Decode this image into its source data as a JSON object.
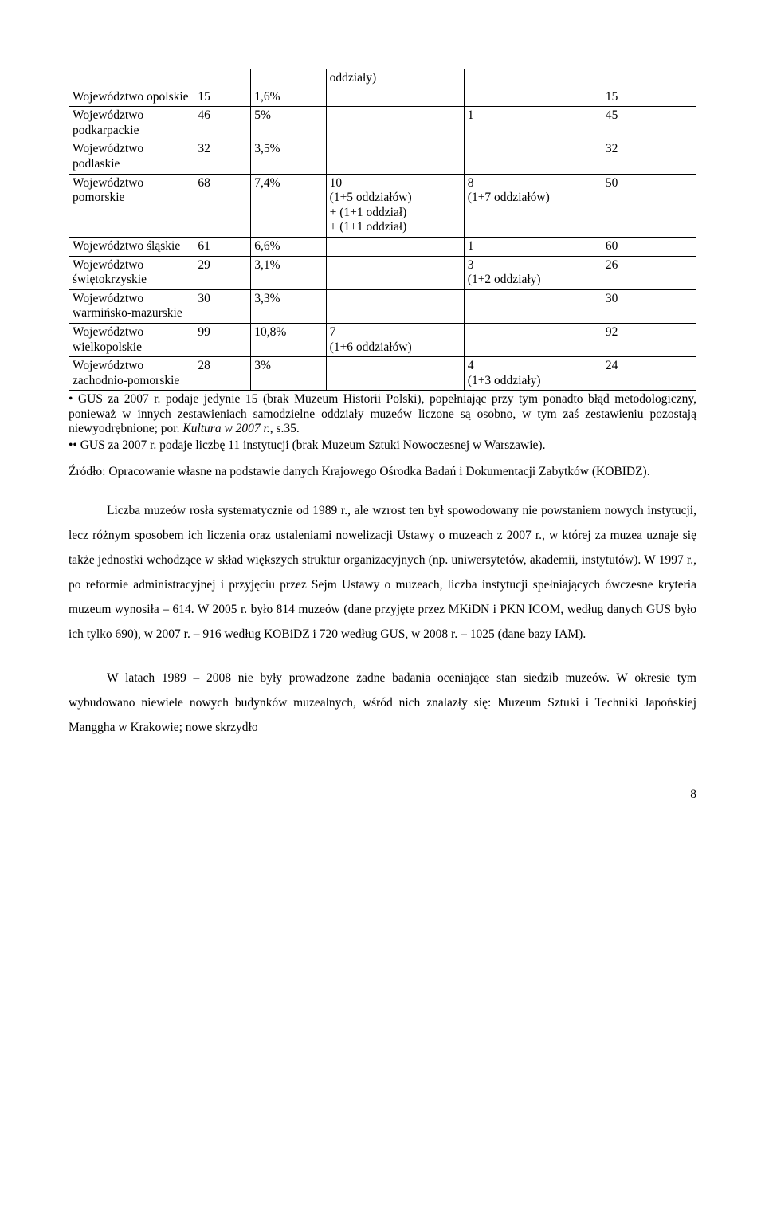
{
  "table": {
    "header_row": {
      "c3": "oddziały)"
    },
    "rows": [
      {
        "c0": "Województwo opolskie",
        "c1": "15",
        "c2": "1,6%",
        "c3": "",
        "c4": "",
        "c5": "15"
      },
      {
        "c0": "Województwo podkarpackie",
        "c1": "46",
        "c2": "5%",
        "c3": "",
        "c4": "1",
        "c5": "45"
      },
      {
        "c0": "Województwo podlaskie",
        "c1": "32",
        "c2": "3,5%",
        "c3": "",
        "c4": "",
        "c5": "32"
      },
      {
        "c0": "Województwo pomorskie",
        "c1": "68",
        "c2": "7,4%",
        "c3": "10\n(1+5 oddziałów)\n+ (1+1 oddział)\n+ (1+1 oddział)",
        "c4": "8\n(1+7 oddziałów)",
        "c5": "50"
      },
      {
        "c0": "Województwo śląskie",
        "c1": "61",
        "c2": "6,6%",
        "c3": "",
        "c4": "1",
        "c5": "60"
      },
      {
        "c0": "Województwo świętokrzyskie",
        "c1": "29",
        "c2": "3,1%",
        "c3": "",
        "c4": "3\n(1+2 oddziały)",
        "c5": "26"
      },
      {
        "c0": "Województwo warmińsko-mazurskie",
        "c1": "30",
        "c2": "3,3%",
        "c3": "",
        "c4": "",
        "c5": "30"
      },
      {
        "c0": "Województwo wielkopolskie",
        "c1": "99",
        "c2": "10,8%",
        "c3": "7\n(1+6 oddziałów)",
        "c4": "",
        "c5": "92"
      },
      {
        "c0": "Województwo zachodnio-pomorskie",
        "c1": "28",
        "c2": "3%",
        "c3": "",
        "c4": "4\n(1+3 oddziały)",
        "c5": "24"
      }
    ]
  },
  "notes": {
    "n1_pre": "• GUS za 2007 r. podaje jedynie 15 (brak  Muzeum Historii Polski), popełniając przy tym ponadto błąd metodologiczny, ponieważ w innych zestawieniach samodzielne oddziały muzeów liczone są osobno, w tym zaś zestawieniu pozostają niewyodrębnione; por. ",
    "n1_italic": "Kultura w 2007 r.,",
    "n1_post": " s.35.",
    "n2": "•• GUS za 2007 r. podaje liczbę 11 instytucji (brak Muzeum Sztuki Nowoczesnej w Warszawie)."
  },
  "source": "Źródło: Opracowanie własne na podstawie danych Krajowego Ośrodka Badań i Dokumentacji Zabytków (KOBIDZ).",
  "paragraphs": {
    "p1": "Liczba muzeów rosła systematycznie od 1989 r., ale wzrost ten był spowodowany nie powstaniem nowych instytucji, lecz różnym sposobem ich liczenia oraz ustaleniami nowelizacji Ustawy o muzeach z 2007 r., w  której  za muzea uznaje się  także jednostki wchodzące w skład większych struktur organizacyjnych (np. uniwersytetów, akademii, instytutów). W 1997 r., po reformie administracyjnej i przyjęciu przez Sejm Ustawy o muzeach, liczba instytucji spełniających ówczesne kryteria muzeum wynosiła – 614. W 2005 r. było 814 muzeów (dane przyjęte przez MKiDN i PKN ICOM, według danych GUS było ich tylko 690), w 2007 r. – 916 według  KOBiDZ i  720 według GUS, w 2008 r. – 1025 (dane bazy IAM).",
    "p2": "W latach 1989 – 2008  nie były prowadzone żadne badania oceniające stan siedzib muzeów. W okresie tym wybudowano niewiele  nowych budynków muzealnych, wśród nich znalazły się: Muzeum Sztuki i Techniki Japońskiej Manggha w Krakowie; nowe skrzydło"
  },
  "page_number": "8"
}
